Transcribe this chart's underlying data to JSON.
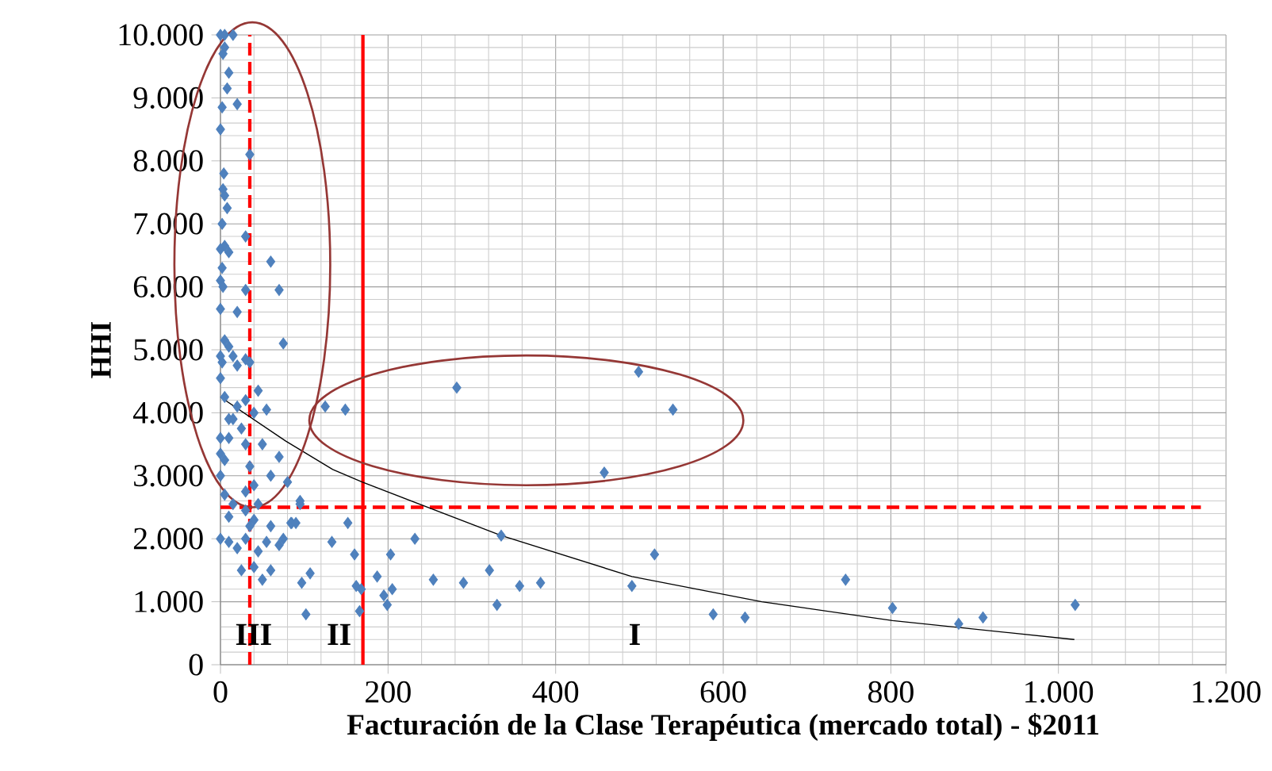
{
  "chart_data": {
    "type": "scatter",
    "xlabel": "Facturación de la Clase Terapéutica (mercado total) - $2011",
    "ylabel": "HHI",
    "xlim": [
      0,
      1200
    ],
    "ylim": [
      0,
      10000
    ],
    "xticks": [
      0,
      200,
      400,
      600,
      800,
      {
        "value": 1000,
        "label": "1.000"
      },
      {
        "value": 1200,
        "label": "1.200"
      }
    ],
    "yticks": [
      0,
      {
        "value": 1000,
        "label": "1.000"
      },
      {
        "value": 2000,
        "label": "2.000"
      },
      {
        "value": 3000,
        "label": "3.000"
      },
      {
        "value": 4000,
        "label": "4.000"
      },
      {
        "value": 5000,
        "label": "5.000"
      },
      {
        "value": 6000,
        "label": "6.000"
      },
      {
        "value": 7000,
        "label": "7.000"
      },
      {
        "value": 8000,
        "label": "8.000"
      },
      {
        "value": 9000,
        "label": "9.000"
      },
      {
        "value": 10000,
        "label": "10.000"
      }
    ],
    "grid": true,
    "marker": "diamond",
    "series": [
      {
        "color": "#4f81bd",
        "x": [
          0,
          5,
          15,
          3,
          5,
          10,
          8,
          20,
          2,
          0,
          35,
          4,
          3,
          5,
          8,
          2,
          30,
          0,
          5,
          10,
          2,
          0,
          3,
          60,
          70,
          30,
          0,
          20,
          75,
          5,
          10,
          0,
          2,
          30,
          15,
          20,
          35,
          45,
          0,
          5,
          30,
          20,
          55,
          40,
          10,
          15,
          25,
          0,
          10,
          30,
          50,
          0,
          5,
          35,
          60,
          0,
          70,
          80,
          40,
          5,
          30,
          95,
          15,
          30,
          45,
          40,
          85,
          10,
          35,
          60,
          30,
          55,
          0,
          10,
          20,
          45,
          70,
          75,
          25,
          60,
          50,
          40,
          125,
          149,
          282,
          499,
          540,
          458,
          335,
          518,
          95,
          152,
          133,
          160,
          232,
          203,
          84,
          90,
          97,
          107,
          102,
          162,
          168,
          166,
          187,
          195,
          205,
          199,
          254,
          290,
          321,
          330,
          357,
          382,
          491,
          588,
          626,
          746,
          802,
          881,
          910,
          1020
        ],
        "values": [
          10000,
          10000,
          10000,
          9700,
          9800,
          9400,
          9150,
          8900,
          8850,
          8500,
          8100,
          7800,
          7550,
          7450,
          7250,
          7000,
          6800,
          6600,
          6650,
          6550,
          6300,
          6100,
          6000,
          6400,
          5950,
          5950,
          5650,
          5600,
          5100,
          5150,
          5050,
          4900,
          4800,
          4850,
          4900,
          4750,
          4800,
          4350,
          4550,
          4250,
          4200,
          4100,
          4050,
          4000,
          3900,
          3900,
          3750,
          3600,
          3600,
          3500,
          3500,
          3350,
          3250,
          3150,
          3000,
          3000,
          3300,
          2900,
          2850,
          2700,
          2750,
          2600,
          2550,
          2450,
          2550,
          2300,
          2250,
          2350,
          2200,
          2200,
          2000,
          1950,
          2000,
          1950,
          1850,
          1800,
          1900,
          2000,
          1500,
          1500,
          1350,
          1550,
          4100,
          4050,
          4400,
          4650,
          4050,
          3050,
          2050,
          1750,
          2550,
          2250,
          1950,
          1750,
          2000,
          1750,
          2250,
          2250,
          1300,
          1450,
          800,
          1250,
          1200,
          850,
          1400,
          1100,
          1200,
          950,
          1350,
          1300,
          1500,
          950,
          1250,
          1300,
          1250,
          800,
          750,
          1350,
          900,
          650,
          750,
          950
        ]
      },
      {
        "type": "line",
        "color": "#000000",
        "marker": "none",
        "x": [
          0,
          78,
          134,
          169,
          335,
          491,
          646,
          802,
          1019
        ],
        "values": [
          4250,
          3550,
          3100,
          2900,
          2050,
          1400,
          1000,
          700,
          400
        ]
      }
    ],
    "ref_lines": [
      {
        "axis": "x",
        "value": 35,
        "color": "#ff0000",
        "line_style": "dashed"
      },
      {
        "axis": "x",
        "value": 170,
        "color": "#ff0000",
        "line_style": "solid"
      },
      {
        "axis": "y",
        "value": 2500,
        "color": "#ff0000",
        "line_style": "dashed"
      }
    ],
    "annotations": [
      "III",
      "II",
      "I"
    ]
  }
}
